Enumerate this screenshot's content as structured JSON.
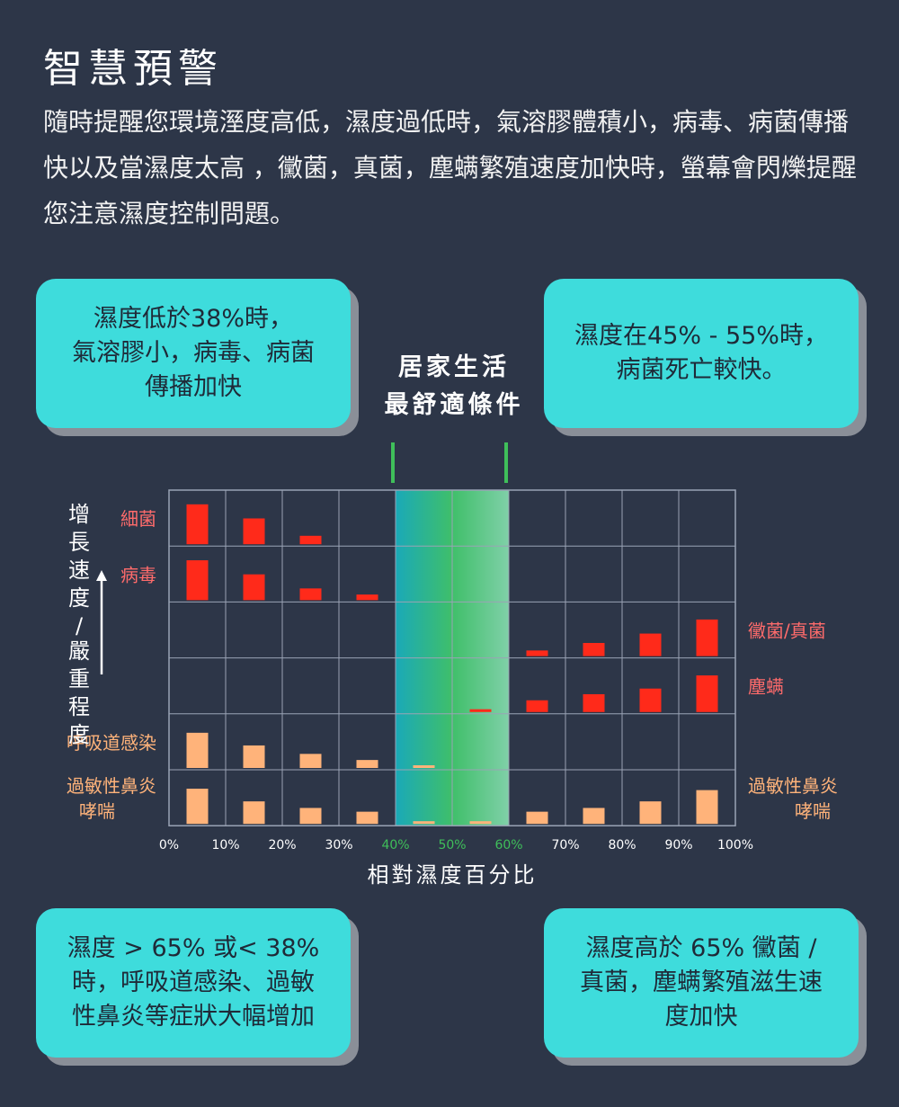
{
  "title": "智慧預警",
  "intro": "隨時提醒您環境溼度高低，濕度過低時，氣溶膠體積小，病毒、病菌傳播快以及當濕度太高 ，黴菌，真菌，塵螨繁殖速度加快時，螢幕會閃爍提醒您注意濕度控制問題。",
  "callouts": {
    "top_left": "濕度低於38%時，\n氣溶膠小，病毒、病菌\n傳播加快",
    "top_right": "濕度在45% - 55%時，\n病菌死亡較快。",
    "bottom_left": "濕度 > 65% 或< 38%\n時，呼吸道感染、過敏\n性鼻炎等症狀大幅增加",
    "bottom_right": "濕度高於 65% 黴菌 /\n真菌，塵螨繁殖滋生速\n度加快"
  },
  "comfort_label": "居家生活\n最舒適條件",
  "colors": {
    "background": "#2d3648",
    "callout": "#3edcdc",
    "hazard_red": "#ff2a1a",
    "respiratory_orange": "#ffb37a",
    "comfort_green": "#3fbf5a",
    "comfort_teal": "#1fb3b8",
    "grid": "#9aa3b5"
  },
  "chart_data": {
    "type": "bar",
    "xlabel": "相對濕度百分比",
    "ylabel": "增長速度/嚴重程度",
    "x_ticks": [
      "0%",
      "10%",
      "20%",
      "30%",
      "40%",
      "50%",
      "60%",
      "70%",
      "80%",
      "90%",
      "100%"
    ],
    "highlight_ticks": [
      "40%",
      "50%",
      "60%"
    ],
    "comfort_range": [
      40,
      60
    ],
    "comfort_markers": [
      40,
      60
    ],
    "bin_centers": [
      5,
      15,
      25,
      35,
      45,
      55,
      65,
      75,
      85,
      95
    ],
    "scale_max": 1,
    "series": [
      {
        "name": "細菌",
        "side": "left",
        "color": "#ff2a1a",
        "values": [
          0.85,
          0.55,
          0.18,
          0,
          0,
          0,
          0,
          0,
          0,
          0
        ]
      },
      {
        "name": "病毒",
        "side": "left",
        "color": "#ff2a1a",
        "values": [
          0.85,
          0.55,
          0.25,
          0.12,
          0,
          0,
          0,
          0,
          0,
          0
        ]
      },
      {
        "name": "黴菌/真菌",
        "side": "right",
        "color": "#ff2a1a",
        "values": [
          0,
          0,
          0,
          0,
          0,
          0,
          0.12,
          0.28,
          0.48,
          0.78
        ]
      },
      {
        "name": "塵螨",
        "side": "right",
        "color": "#ff2a1a",
        "values": [
          0,
          0,
          0,
          0,
          0,
          0.06,
          0.25,
          0.38,
          0.5,
          0.78
        ]
      },
      {
        "name": "呼吸道感染",
        "side": "left",
        "color": "#ffb37a",
        "values": [
          0.75,
          0.48,
          0.3,
          0.17,
          0.03,
          0,
          0,
          0,
          0,
          0
        ]
      },
      {
        "name": "過敏性鼻炎\n哮喘",
        "side": "both",
        "color": "#ffb37a",
        "values": [
          0.75,
          0.48,
          0.34,
          0.26,
          0.04,
          0.04,
          0.26,
          0.34,
          0.48,
          0.72
        ]
      }
    ]
  }
}
